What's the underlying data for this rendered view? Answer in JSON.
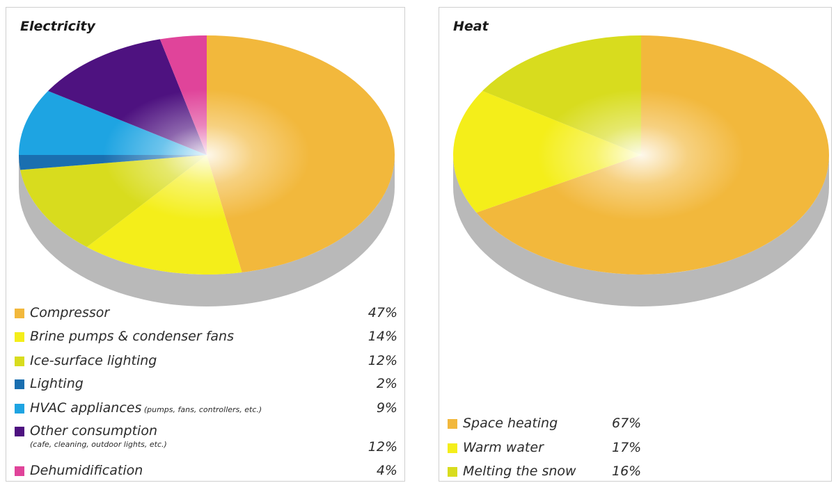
{
  "chart_data": [
    {
      "type": "pie",
      "title": "Electricity",
      "slices": [
        {
          "label": "Compressor",
          "note": "",
          "value": 47,
          "value_label": "47%",
          "color": "#f2b83c"
        },
        {
          "label": "Brine pumps & condenser fans",
          "note": "",
          "value": 14,
          "value_label": "14%",
          "color": "#f4ee1a"
        },
        {
          "label": "Ice-surface lighting",
          "note": "",
          "value": 12,
          "value_label": "12%",
          "color": "#d8dc1e"
        },
        {
          "label": "Lighting",
          "note": "",
          "value": 2,
          "value_label": "2%",
          "color": "#1a6fb0"
        },
        {
          "label": "HVAC appliances",
          "note": "(pumps, fans, controllers, etc.)",
          "value": 9,
          "value_label": "9%",
          "color": "#1ea4e2"
        },
        {
          "label": "Other consumption",
          "note": "(cafe, cleaning, outdoor lights, etc.)",
          "value": 12,
          "value_label": "12%",
          "color": "#4e1280"
        },
        {
          "label": "Dehumidification",
          "note": "",
          "value": 4,
          "value_label": "4%",
          "color": "#e0449a"
        }
      ],
      "legend_position": "bottom"
    },
    {
      "type": "pie",
      "title": "Heat",
      "slices": [
        {
          "label": "Space heating",
          "note": "",
          "value": 67,
          "value_label": "67%",
          "color": "#f2b83c"
        },
        {
          "label": "Warm water",
          "note": "",
          "value": 17,
          "value_label": "17%",
          "color": "#f4ee1a"
        },
        {
          "label": "Melting the snow",
          "note": "",
          "value": 16,
          "value_label": "16%",
          "color": "#d8dc1e"
        }
      ],
      "legend_position": "bottom"
    }
  ],
  "side_color": "#b9b9b9"
}
